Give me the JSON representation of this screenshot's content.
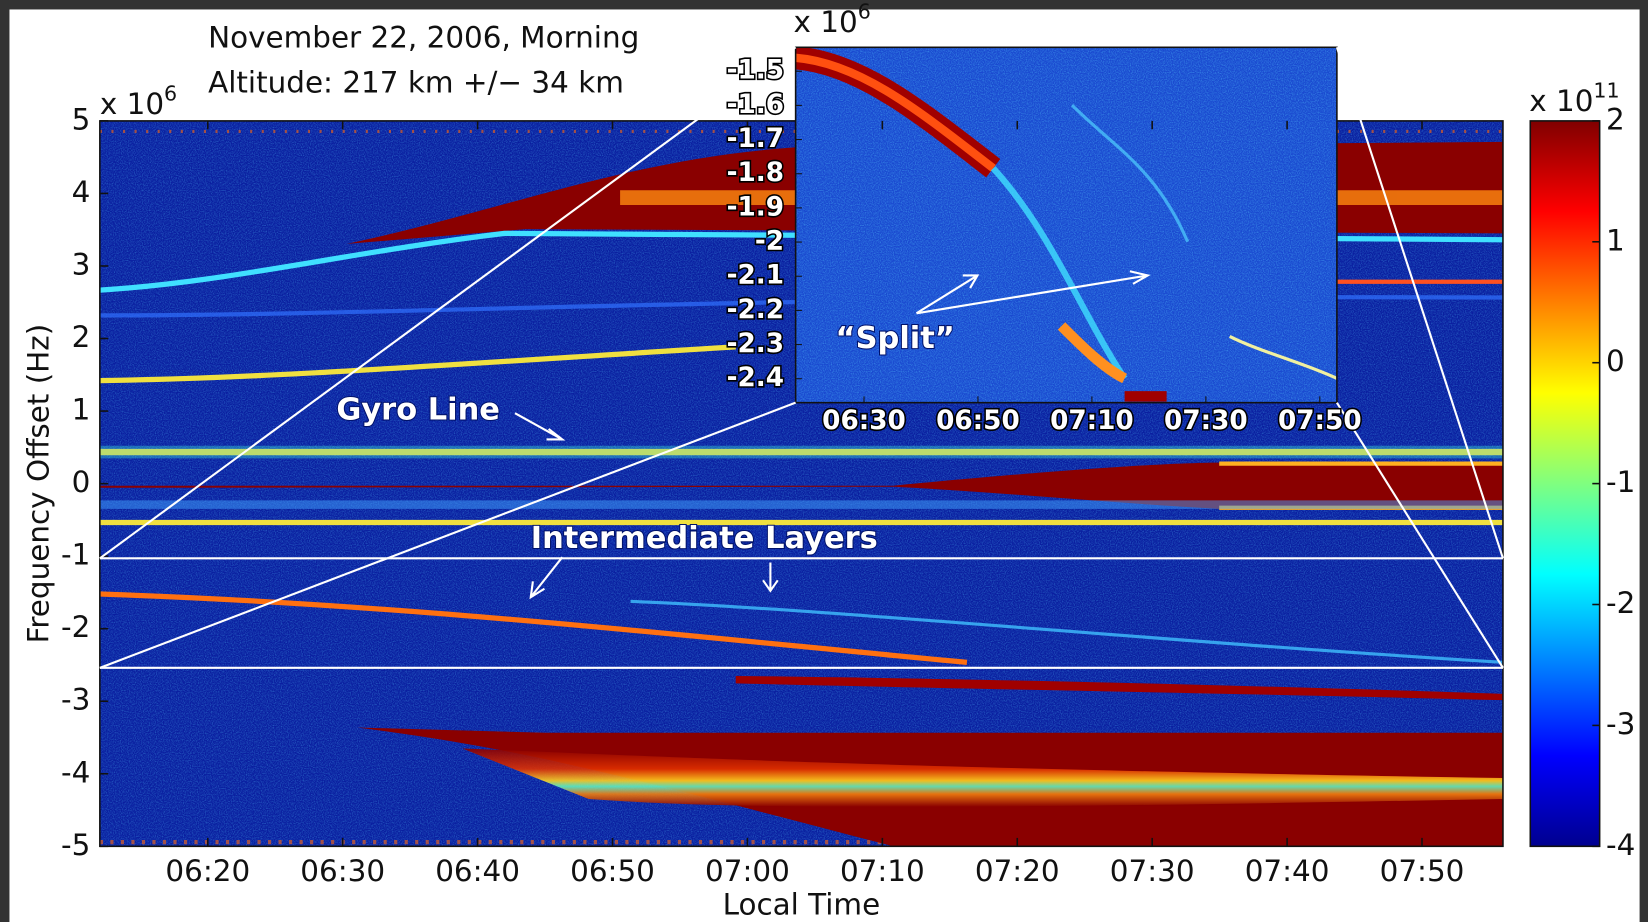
{
  "chart_data": {
    "type": "spectrogram",
    "title_lines": [
      "November 22, 2006, Morning",
      "Altitude: 217 km +/− 34 km"
    ],
    "x_label": "Local Time",
    "y_label": "Frequency Offset (Hz)",
    "y_multiplier": {
      "base": "x 10",
      "exponent": "6"
    },
    "xlim": [
      "06:12",
      "07:56"
    ],
    "xticks": [
      "06:20",
      "06:30",
      "06:40",
      "06:50",
      "07:00",
      "07:10",
      "07:20",
      "07:30",
      "07:40",
      "07:50"
    ],
    "ylim": [
      -5,
      5
    ],
    "yticks": [
      -5,
      -4,
      -3,
      -2,
      -1,
      0,
      1,
      2,
      3,
      4,
      5
    ],
    "zoom_ylim": [
      -2.54,
      -1.03
    ],
    "colorbar": {
      "colormap": "jet",
      "multiplier": {
        "base": "x 10",
        "exponent": "11"
      },
      "clim": [
        -4,
        2
      ],
      "ticks": [
        -4,
        -3,
        -2,
        -1,
        0,
        1,
        2
      ]
    },
    "inset": {
      "y_multiplier": {
        "base": "x 10",
        "exponent": "6"
      },
      "xlim": [
        "06:18",
        "07:53"
      ],
      "xticks": [
        "06:30",
        "06:50",
        "07:10",
        "07:30",
        "07:50"
      ],
      "ylim": [
        -2.47,
        -1.43
      ],
      "yticks": [
        -1.5,
        -1.6,
        -1.7,
        -1.8,
        -1.9,
        -2,
        -2.1,
        -2.2,
        -2.3,
        -2.4
      ]
    },
    "annotations": [
      "Gyro Line",
      "Intermediate Layers",
      "“Split”"
    ]
  }
}
